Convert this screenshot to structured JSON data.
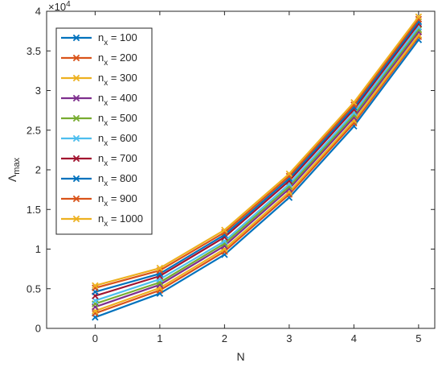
{
  "chart_data": {
    "type": "line",
    "xlabel": "N",
    "ylabel": "Λ",
    "ylabel_sub": "max",
    "y_exponent_label": "×10",
    "y_exponent_power": "4",
    "xlim": [
      -0.75,
      5.25
    ],
    "ylim": [
      0,
      40000
    ],
    "x_ticks": [
      0,
      1,
      2,
      3,
      4,
      5
    ],
    "x_tick_labels": [
      "0",
      "1",
      "2",
      "3",
      "4",
      "5"
    ],
    "y_ticks": [
      0,
      5000,
      10000,
      15000,
      20000,
      25000,
      30000,
      35000,
      40000
    ],
    "y_tick_labels": [
      "0",
      "0.5",
      "1",
      "1.5",
      "2",
      "2.5",
      "3",
      "3.5",
      "4"
    ],
    "grid": false,
    "legend_position": "top-left",
    "marker": "x",
    "x": [
      0,
      1,
      2,
      3,
      4,
      5
    ],
    "series": [
      {
        "name": "n",
        "sub": "x",
        "suffix": " = 100",
        "color": "#0072BD",
        "values": [
          1400,
          4400,
          9300,
          16500,
          25500,
          36400
        ]
      },
      {
        "name": "n",
        "sub": "x",
        "suffix": " = 200",
        "color": "#D95319",
        "values": [
          1900,
          4800,
          9700,
          16900,
          25900,
          36800
        ]
      },
      {
        "name": "n",
        "sub": "x",
        "suffix": " = 300",
        "color": "#EDB120",
        "values": [
          2200,
          5100,
          10000,
          17200,
          26200,
          37000
        ]
      },
      {
        "name": "n",
        "sub": "x",
        "suffix": " = 400",
        "color": "#7E2F8E",
        "values": [
          2700,
          5500,
          10400,
          17600,
          26600,
          37400
        ]
      },
      {
        "name": "n",
        "sub": "x",
        "suffix": " = 500",
        "color": "#77AC30",
        "values": [
          3100,
          5800,
          10700,
          17900,
          26900,
          37700
        ]
      },
      {
        "name": "n",
        "sub": "x",
        "suffix": " = 600",
        "color": "#4DBEEE",
        "values": [
          3500,
          6200,
          11000,
          18200,
          27200,
          38000
        ]
      },
      {
        "name": "n",
        "sub": "x",
        "suffix": " = 700",
        "color": "#A2142F",
        "values": [
          4100,
          6600,
          11500,
          18600,
          27600,
          38400
        ]
      },
      {
        "name": "n",
        "sub": "x",
        "suffix": " = 800",
        "color": "#0072BD",
        "values": [
          4600,
          6900,
          11800,
          18900,
          27900,
          38700
        ]
      },
      {
        "name": "n",
        "sub": "x",
        "suffix": " = 900",
        "color": "#D95319",
        "values": [
          5100,
          7300,
          12100,
          19200,
          28200,
          39000
        ]
      },
      {
        "name": "n",
        "sub": "x",
        "suffix": " = 1000",
        "color": "#EDB120",
        "values": [
          5400,
          7600,
          12400,
          19500,
          28500,
          39300
        ]
      }
    ]
  }
}
